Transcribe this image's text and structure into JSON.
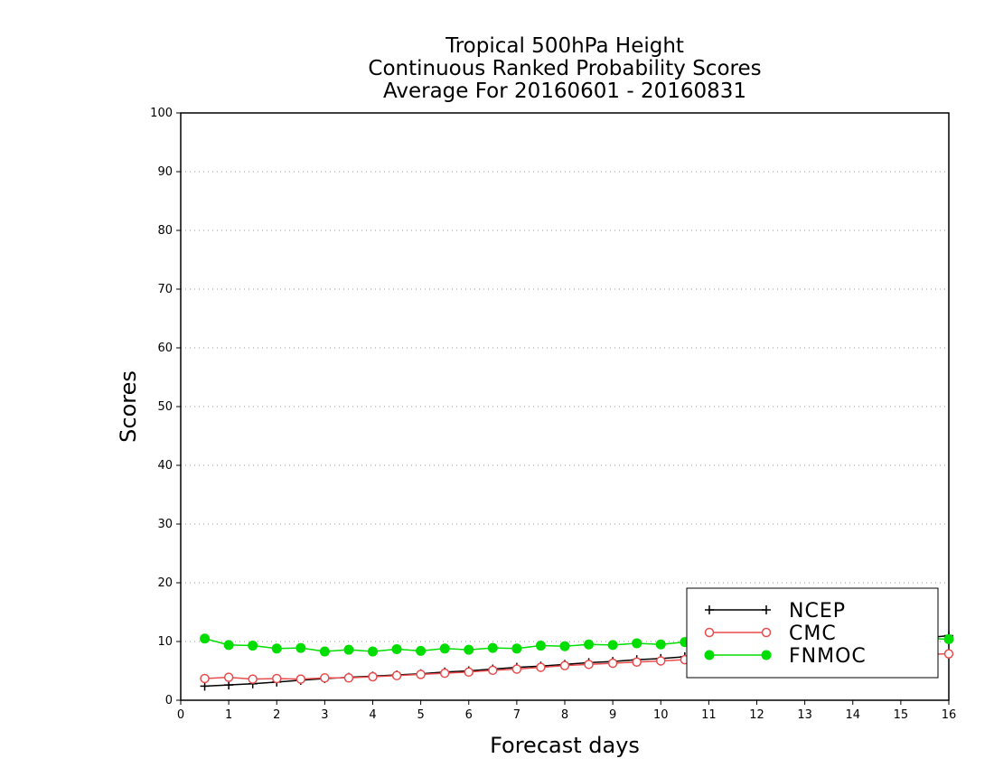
{
  "chart_data": {
    "type": "line",
    "title": [
      "Tropical 500hPa Height",
      "Continuous Ranked Probability Scores",
      "Average For 20160601 - 20160831"
    ],
    "xlabel": "Forecast days",
    "ylabel": "Scores",
    "xlim": [
      0,
      16
    ],
    "ylim": [
      0,
      100
    ],
    "xticks": [
      0,
      1,
      2,
      3,
      4,
      5,
      6,
      7,
      8,
      9,
      10,
      11,
      12,
      13,
      14,
      15,
      16
    ],
    "yticks": [
      0,
      10,
      20,
      30,
      40,
      50,
      60,
      70,
      80,
      90,
      100
    ],
    "grid": "horizontal dotted",
    "legend_position": "bottom-right",
    "x": [
      0.5,
      1,
      1.5,
      2,
      2.5,
      3,
      3.5,
      4,
      4.5,
      5,
      5.5,
      6,
      6.5,
      7,
      7.5,
      8,
      8.5,
      9,
      9.5,
      10,
      10.5,
      11,
      11.5,
      12,
      12.5,
      13,
      13.5,
      14,
      14.5,
      15,
      15.5,
      16
    ],
    "series": [
      {
        "name": "NCEP",
        "color": "#000000",
        "marker": "plus",
        "values": [
          2.4,
          2.6,
          2.8,
          3.1,
          3.4,
          3.7,
          3.9,
          4.1,
          4.3,
          4.5,
          4.8,
          5.0,
          5.3,
          5.6,
          5.8,
          6.1,
          6.4,
          6.6,
          6.9,
          7.1,
          7.4,
          7.7,
          8.0,
          8.3,
          8.6,
          8.9,
          9.3,
          9.6,
          9.9,
          10.3,
          10.6,
          11.0
        ]
      },
      {
        "name": "CMC",
        "color": "#e84c4c",
        "marker": "open-circle",
        "values": [
          3.7,
          3.9,
          3.6,
          3.7,
          3.6,
          3.8,
          3.8,
          4.0,
          4.2,
          4.4,
          4.6,
          4.8,
          5.1,
          5.3,
          5.6,
          5.9,
          6.1,
          6.3,
          6.5,
          6.7,
          6.9,
          7.0,
          7.2,
          7.3,
          7.4,
          7.5,
          7.6,
          7.6,
          7.7,
          7.7,
          7.8,
          7.9
        ]
      },
      {
        "name": "FNMOC",
        "color": "#00dd00",
        "marker": "filled-circle",
        "values": [
          10.5,
          9.4,
          9.3,
          8.8,
          8.9,
          8.3,
          8.6,
          8.3,
          8.7,
          8.4,
          8.8,
          8.6,
          8.9,
          8.8,
          9.3,
          9.2,
          9.5,
          9.4,
          9.7,
          9.5,
          9.9,
          9.8,
          10.0,
          10.0,
          10.1,
          10.1,
          10.2,
          10.3,
          10.3,
          10.3,
          10.5,
          10.4
        ]
      }
    ]
  }
}
